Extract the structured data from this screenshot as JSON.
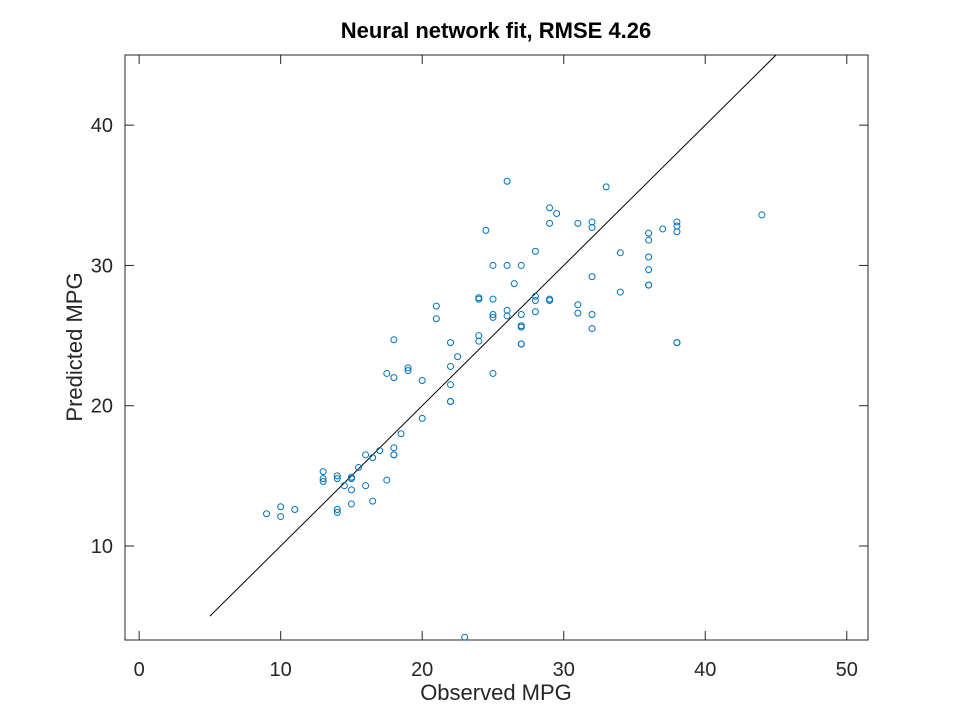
{
  "chart_data": {
    "type": "scatter",
    "title": "Neural network fit, RMSE 4.26",
    "xlabel": "Observed MPG",
    "ylabel": "Predicted MPG",
    "xlim": [
      -1,
      51.5
    ],
    "ylim": [
      3.3,
      45
    ],
    "xticks": [
      0,
      10,
      20,
      30,
      40,
      50
    ],
    "yticks": [
      10,
      20,
      30,
      40
    ],
    "grid": false,
    "legend": "none",
    "marker_color": "#0072bd",
    "line_color": "#000000",
    "reference_line": {
      "x": [
        5,
        45
      ],
      "y": [
        5,
        45
      ]
    },
    "points": {
      "x": [
        9,
        10,
        10,
        11,
        13,
        13,
        13,
        14,
        14,
        14,
        14,
        14.5,
        15,
        15,
        15,
        15,
        15.5,
        16,
        16,
        16.5,
        16.5,
        17,
        17.5,
        17.5,
        18,
        18,
        18,
        18,
        18,
        18.5,
        19,
        19,
        20,
        20,
        21,
        21,
        22,
        22,
        22,
        22,
        22,
        22.5,
        23,
        24,
        24,
        24,
        24,
        24.5,
        25,
        25,
        25,
        25,
        25,
        26,
        26,
        26,
        26,
        26.5,
        27,
        27,
        27,
        27,
        27,
        27,
        28,
        28,
        28,
        28,
        29,
        29,
        29,
        29,
        29.5,
        31,
        31,
        31,
        32,
        32,
        32,
        32,
        32,
        33,
        34,
        34,
        36,
        36,
        36,
        36,
        36,
        36,
        37,
        38,
        38,
        38,
        38,
        38,
        44
      ],
      "y": [
        12.3,
        12.8,
        12.1,
        12.6,
        15.3,
        14.8,
        14.6,
        15.0,
        14.8,
        12.6,
        12.4,
        14.3,
        14.9,
        14.8,
        13.0,
        14.0,
        15.6,
        16.5,
        14.3,
        16.3,
        13.2,
        16.8,
        14.7,
        22.3,
        24.7,
        22.0,
        17.0,
        16.5,
        16.5,
        18.0,
        22.7,
        22.5,
        21.8,
        19.1,
        27.1,
        26.2,
        24.5,
        22.8,
        21.5,
        20.3,
        20.3,
        23.5,
        3.5,
        27.7,
        27.6,
        25.0,
        24.6,
        32.5,
        30.0,
        27.6,
        26.5,
        26.3,
        22.3,
        36.0,
        30.0,
        26.8,
        26.4,
        28.7,
        30.0,
        26.5,
        25.7,
        25.6,
        24.4,
        24.4,
        31.0,
        27.8,
        27.5,
        26.7,
        34.1,
        33.0,
        27.6,
        27.5,
        33.7,
        33.0,
        27.2,
        26.6,
        33.1,
        32.7,
        29.2,
        26.5,
        25.5,
        35.6,
        30.9,
        28.1,
        32.3,
        31.8,
        30.6,
        29.7,
        28.6,
        28.6,
        32.6,
        33.1,
        32.8,
        32.4,
        24.5,
        24.5,
        33.6
      ]
    }
  }
}
